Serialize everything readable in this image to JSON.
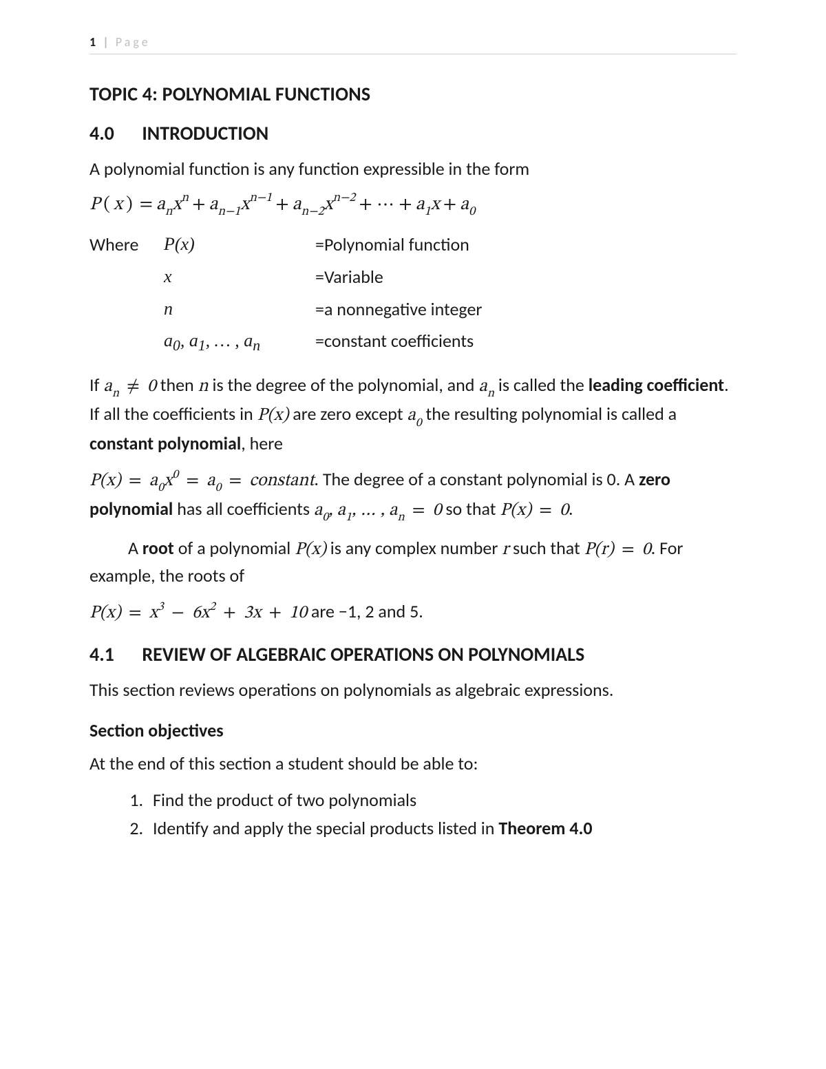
{
  "header": {
    "pageNum": "1",
    "sep": "|",
    "label": "Page"
  },
  "topicTitle": "TOPIC 4: POLYNOMIAL FUNCTIONS",
  "s40": {
    "num": "4.0",
    "title": "INTRODUCTION"
  },
  "introSentence": "A polynomial function is any function expressible in the form",
  "defs": {
    "whereLabel": "Where ",
    "r1Sym": "P(x)",
    "r1Txt": "=Polynomial function",
    "r2Sym": "x",
    "r2Txt": "=Variable",
    "r3Sym": "n",
    "r3Txt": "=a nonnegative integer",
    "r4aTxt": "a",
    "r4Txt": "=constant coefficients"
  },
  "para2a": "If ",
  "para2b": " then ",
  "para2c": " is the degree of the polynomial, and ",
  "para2d": " is called the ",
  "leadingCoef": "leading coefficient",
  "para2e": ". If all the coefficients in ",
  "para2f": " are zero except ",
  "para2g": " the resulting polynomial is called a ",
  "constPoly": "constant polynomial",
  "para2h": ", here",
  "para3a": ". The degree of a constant polynomial is 0. A ",
  "zeroPoly": "zero polynomial",
  "para3b": " has all coefficients ",
  "para3c": " so that ",
  "para4a": "A ",
  "root": "root",
  "para4b": " of a polynomial ",
  "para4c": " is any complex number ",
  "para4d": " such that ",
  "para4e": ". For example, the roots of",
  "rootsTail": " are −1, 2 and 5.",
  "s41": {
    "num": "4.1",
    "title": "REVIEW OF ALGEBRAIC OPERATIONS ON POLYNOMIALS"
  },
  "s41Intro": "This section reviews operations on polynomials as algebraic expressions.",
  "objHeading": "Section objectives",
  "objIntro": "At the end of this section a student should be able to:",
  "obj1": "Find the product of two polynomials",
  "obj2a": "Identify and apply the special products listed in ",
  "obj2b": "Theorem 4.0",
  "colors": {
    "text": "#1a1a1a",
    "muted": "#c0c0c0",
    "rule": "#d0d0d0",
    "bg": "#ffffff"
  },
  "fonts": {
    "body": "Calibri",
    "math": "Cambria Math",
    "bodySizePt": 20,
    "headingSizePt": 21
  }
}
